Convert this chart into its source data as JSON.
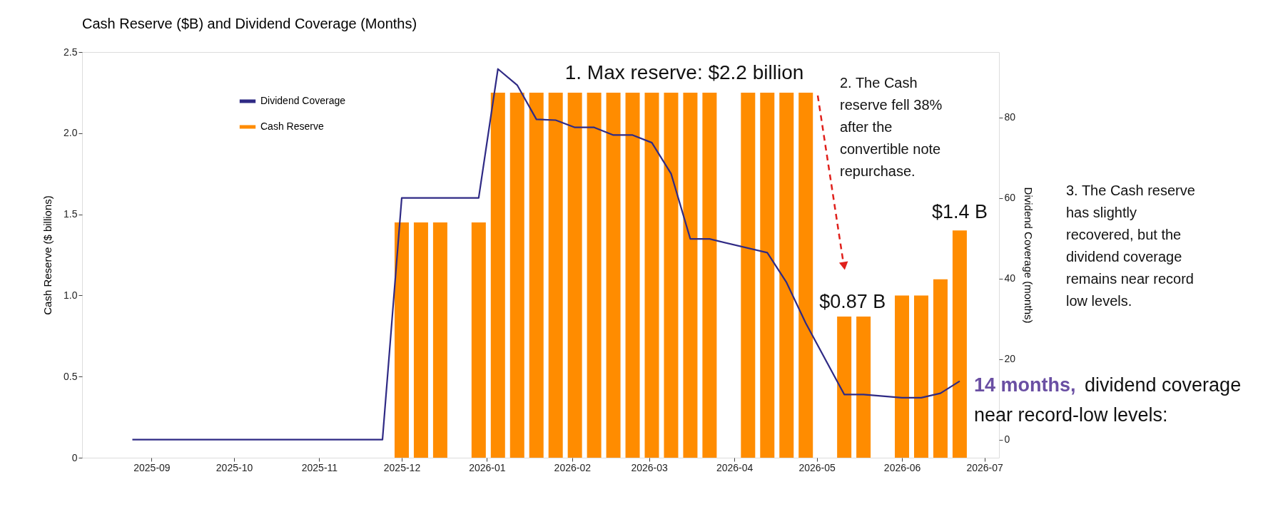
{
  "chart_data": {
    "type": "bar",
    "title": "Cash Reserve ($B) and Dividend Coverage (Months)",
    "ylabel": "Cash Reserve ($ billions)",
    "y2label": "Dividend Coverage (months)",
    "series": [
      {
        "name": "Dividend Coverage",
        "type": "line",
        "axis": "y2",
        "color": "#2f2a85",
        "x": [
          "2025-08-25",
          "2025-11-24",
          "2025-12-01",
          "2025-12-29",
          "2026-01-05",
          "2026-01-12",
          "2026-01-19",
          "2026-01-26",
          "2026-02-02",
          "2026-02-09",
          "2026-02-16",
          "2026-02-23",
          "2026-03-02",
          "2026-03-09",
          "2026-03-16",
          "2026-03-23",
          "2026-04-13",
          "2026-04-20",
          "2026-04-27",
          "2026-05-11",
          "2026-05-18",
          "2026-06-01",
          "2026-06-08",
          "2026-06-15",
          "2026-06-22"
        ],
        "values": [
          0,
          0,
          60,
          60,
          92,
          88,
          79.5,
          79.3,
          77.5,
          77.5,
          75.6,
          75.6,
          73.7,
          66,
          49.8,
          49.8,
          46.4,
          39,
          28.9,
          11.2,
          11.2,
          10.4,
          10.4,
          11.5,
          14.5
        ]
      },
      {
        "name": "Cash Reserve",
        "type": "bar",
        "color": "#ff8c00",
        "x": [
          "2025-12-01",
          "2025-12-08",
          "2025-12-15",
          "2025-12-22",
          "2025-12-29",
          "2026-01-05",
          "2026-01-12",
          "2026-01-19",
          "2026-01-26",
          "2026-02-02",
          "2026-02-09",
          "2026-02-16",
          "2026-02-23",
          "2026-03-02",
          "2026-03-09",
          "2026-03-16",
          "2026-03-23",
          "2026-03-30",
          "2026-04-06",
          "2026-04-13",
          "2026-04-20",
          "2026-04-27",
          "2026-05-04",
          "2026-05-11",
          "2026-05-18",
          "2026-05-25",
          "2026-06-01",
          "2026-06-08",
          "2026-06-15",
          "2026-06-22"
        ],
        "values": [
          1.45,
          1.45,
          1.45,
          null,
          1.45,
          2.25,
          2.25,
          2.25,
          2.25,
          2.25,
          2.25,
          2.25,
          2.25,
          2.25,
          2.25,
          2.25,
          2.25,
          null,
          2.25,
          2.25,
          2.25,
          2.25,
          null,
          0.87,
          0.87,
          null,
          1.0,
          1.0,
          1.1,
          1.4
        ]
      }
    ],
    "xlim": [
      "2025-08-08",
      "2026-07-05"
    ],
    "xticks": [
      {
        "value": "2025-09-01",
        "label": "2025-09"
      },
      {
        "value": "2025-10-01",
        "label": "2025-10"
      },
      {
        "value": "2025-11-01",
        "label": "2025-11"
      },
      {
        "value": "2025-12-01",
        "label": "2025-12"
      },
      {
        "value": "2026-01-01",
        "label": "2026-01"
      },
      {
        "value": "2026-02-01",
        "label": "2026-02"
      },
      {
        "value": "2026-03-01",
        "label": "2026-03"
      },
      {
        "value": "2026-04-01",
        "label": "2026-04"
      },
      {
        "value": "2026-05-01",
        "label": "2026-05"
      },
      {
        "value": "2026-06-01",
        "label": "2026-06"
      },
      {
        "value": "2026-07-01",
        "label": "2026-07"
      }
    ],
    "ylim": [
      0,
      2.5
    ],
    "yticks": [
      0,
      {
        "value": 0.5,
        "label": "0.5"
      },
      {
        "value": 1,
        "label": "1.0"
      },
      {
        "value": 1.5,
        "label": "1.5"
      },
      {
        "value": 2,
        "label": "2.0"
      },
      {
        "value": 2.5,
        "label": "2.5"
      }
    ],
    "y2lim": [
      -4.5,
      96.2
    ],
    "y2ticks": [
      0,
      20,
      40,
      60,
      80
    ],
    "grid": false,
    "legend": "top left",
    "marker": "none",
    "line_style": "solid",
    "annotations": [
      "1. Max reserve: $2.2 billion",
      "2. The Cash reserve fell 38% after the convertible note repurchase.",
      "3. The Cash reserve has slightly recovered, but the dividend coverage remains near record low levels.",
      {
        "text": "$0.87 B",
        "x": "2026-05-14",
        "y": 0.87
      },
      {
        "text": "$1.4 B",
        "x": "2026-06-22",
        "y": 1.4
      },
      "14 months,",
      "dividend coverage near record-low levels:"
    ]
  }
}
